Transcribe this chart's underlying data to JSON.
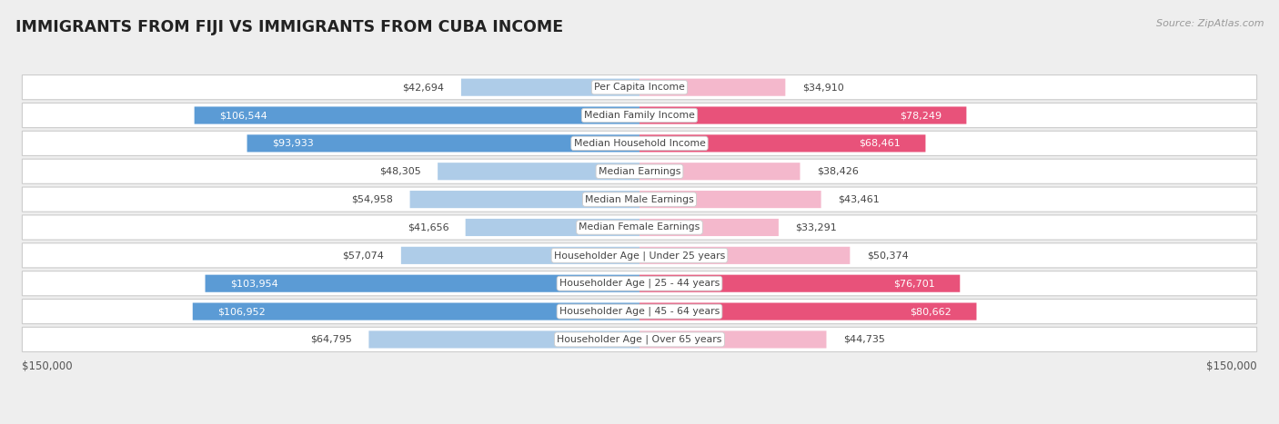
{
  "title": "IMMIGRANTS FROM FIJI VS IMMIGRANTS FROM CUBA INCOME",
  "source": "Source: ZipAtlas.com",
  "categories": [
    "Per Capita Income",
    "Median Family Income",
    "Median Household Income",
    "Median Earnings",
    "Median Male Earnings",
    "Median Female Earnings",
    "Householder Age | Under 25 years",
    "Householder Age | 25 - 44 years",
    "Householder Age | 45 - 64 years",
    "Householder Age | Over 65 years"
  ],
  "fiji_values": [
    42694,
    106544,
    93933,
    48305,
    54958,
    41656,
    57074,
    103954,
    106952,
    64795
  ],
  "cuba_values": [
    34910,
    78249,
    68461,
    38426,
    43461,
    33291,
    50374,
    76701,
    80662,
    44735
  ],
  "fiji_color_light": "#aecce8",
  "fiji_color_dark": "#5b9bd5",
  "cuba_color_light": "#f4b8cc",
  "cuba_color_dark": "#e8527a",
  "fiji_dark_threshold": 70000,
  "cuba_dark_threshold": 60000,
  "max_value": 150000,
  "background_color": "#eeeeee",
  "row_bg_color": "#ffffff",
  "label_bg_color": "#f2f2f2",
  "fiji_label": "Immigrants from Fiji",
  "cuba_label": "Immigrants from Cuba"
}
